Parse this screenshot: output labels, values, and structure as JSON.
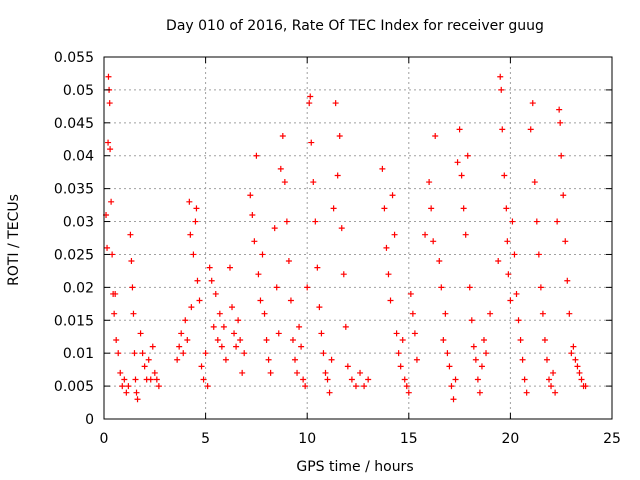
{
  "chart_data": {
    "type": "scatter",
    "title": "Day 010 of 2016, Rate Of TEC Index for receiver guug",
    "xlabel": "GPS time / hours",
    "ylabel": "ROTI / TECUs",
    "xlim": [
      0,
      25
    ],
    "ylim": [
      0,
      0.055
    ],
    "xticks": [
      0,
      5,
      10,
      15,
      20,
      25
    ],
    "xtick_labels": [
      "0",
      "5",
      "10",
      "15",
      "20",
      "25"
    ],
    "yticks": [
      0,
      0.005,
      0.01,
      0.015,
      0.02,
      0.025,
      0.03,
      0.035,
      0.04,
      0.045,
      0.05,
      0.055
    ],
    "ytick_labels": [
      "0",
      "0.005",
      "0.01",
      "0.015",
      "0.02",
      "0.025",
      "0.03",
      "0.035",
      "0.04",
      "0.045",
      "0.05",
      "0.055"
    ],
    "grid": true,
    "marker": "+",
    "series_color": "#ff0000",
    "series": [
      {
        "name": "ROTI",
        "points": [
          [
            0.1,
            0.031
          ],
          [
            0.15,
            0.026
          ],
          [
            0.2,
            0.042
          ],
          [
            0.22,
            0.052
          ],
          [
            0.25,
            0.05
          ],
          [
            0.28,
            0.048
          ],
          [
            0.3,
            0.041
          ],
          [
            0.35,
            0.033
          ],
          [
            0.4,
            0.025
          ],
          [
            0.45,
            0.019
          ],
          [
            0.5,
            0.016
          ],
          [
            0.55,
            0.019
          ],
          [
            0.6,
            0.012
          ],
          [
            0.7,
            0.01
          ],
          [
            0.8,
            0.007
          ],
          [
            0.9,
            0.005
          ],
          [
            1.0,
            0.006
          ],
          [
            1.1,
            0.004
          ],
          [
            1.2,
            0.005
          ],
          [
            1.3,
            0.028
          ],
          [
            1.35,
            0.024
          ],
          [
            1.4,
            0.02
          ],
          [
            1.45,
            0.016
          ],
          [
            1.5,
            0.01
          ],
          [
            1.55,
            0.006
          ],
          [
            1.6,
            0.004
          ],
          [
            1.65,
            0.003
          ],
          [
            1.8,
            0.013
          ],
          [
            1.9,
            0.01
          ],
          [
            2.0,
            0.008
          ],
          [
            2.1,
            0.006
          ],
          [
            2.2,
            0.009
          ],
          [
            2.3,
            0.006
          ],
          [
            2.4,
            0.011
          ],
          [
            2.5,
            0.007
          ],
          [
            2.6,
            0.006
          ],
          [
            2.7,
            0.005
          ],
          [
            3.6,
            0.009
          ],
          [
            3.7,
            0.011
          ],
          [
            3.8,
            0.013
          ],
          [
            3.9,
            0.01
          ],
          [
            4.0,
            0.015
          ],
          [
            4.1,
            0.012
          ],
          [
            4.2,
            0.033
          ],
          [
            4.25,
            0.028
          ],
          [
            4.3,
            0.017
          ],
          [
            4.4,
            0.025
          ],
          [
            4.5,
            0.03
          ],
          [
            4.55,
            0.032
          ],
          [
            4.6,
            0.021
          ],
          [
            4.7,
            0.018
          ],
          [
            4.8,
            0.008
          ],
          [
            4.9,
            0.006
          ],
          [
            5.0,
            0.01
          ],
          [
            5.1,
            0.005
          ],
          [
            5.2,
            0.023
          ],
          [
            5.3,
            0.021
          ],
          [
            5.4,
            0.014
          ],
          [
            5.5,
            0.019
          ],
          [
            5.6,
            0.012
          ],
          [
            5.7,
            0.016
          ],
          [
            5.8,
            0.011
          ],
          [
            5.9,
            0.014
          ],
          [
            6.0,
            0.009
          ],
          [
            6.2,
            0.023
          ],
          [
            6.3,
            0.017
          ],
          [
            6.4,
            0.013
          ],
          [
            6.5,
            0.011
          ],
          [
            6.6,
            0.015
          ],
          [
            6.7,
            0.012
          ],
          [
            6.8,
            0.007
          ],
          [
            6.9,
            0.01
          ],
          [
            7.2,
            0.034
          ],
          [
            7.3,
            0.031
          ],
          [
            7.4,
            0.027
          ],
          [
            7.5,
            0.04
          ],
          [
            7.6,
            0.022
          ],
          [
            7.7,
            0.018
          ],
          [
            7.8,
            0.025
          ],
          [
            7.9,
            0.016
          ],
          [
            8.0,
            0.012
          ],
          [
            8.1,
            0.009
          ],
          [
            8.2,
            0.007
          ],
          [
            8.4,
            0.029
          ],
          [
            8.5,
            0.02
          ],
          [
            8.6,
            0.013
          ],
          [
            8.7,
            0.038
          ],
          [
            8.8,
            0.043
          ],
          [
            8.9,
            0.036
          ],
          [
            9.0,
            0.03
          ],
          [
            9.1,
            0.024
          ],
          [
            9.2,
            0.018
          ],
          [
            9.3,
            0.012
          ],
          [
            9.4,
            0.009
          ],
          [
            9.5,
            0.007
          ],
          [
            9.6,
            0.014
          ],
          [
            9.7,
            0.011
          ],
          [
            9.8,
            0.006
          ],
          [
            9.9,
            0.005
          ],
          [
            10.0,
            0.02
          ],
          [
            10.1,
            0.048
          ],
          [
            10.15,
            0.049
          ],
          [
            10.2,
            0.042
          ],
          [
            10.3,
            0.036
          ],
          [
            10.4,
            0.03
          ],
          [
            10.5,
            0.023
          ],
          [
            10.6,
            0.017
          ],
          [
            10.7,
            0.013
          ],
          [
            10.8,
            0.01
          ],
          [
            10.9,
            0.007
          ],
          [
            11.0,
            0.006
          ],
          [
            11.1,
            0.004
          ],
          [
            11.2,
            0.009
          ],
          [
            11.3,
            0.032
          ],
          [
            11.4,
            0.048
          ],
          [
            11.5,
            0.037
          ],
          [
            11.6,
            0.043
          ],
          [
            11.7,
            0.029
          ],
          [
            11.8,
            0.022
          ],
          [
            11.9,
            0.014
          ],
          [
            12.0,
            0.008
          ],
          [
            12.2,
            0.006
          ],
          [
            12.4,
            0.005
          ],
          [
            12.6,
            0.007
          ],
          [
            12.8,
            0.005
          ],
          [
            13.0,
            0.006
          ],
          [
            13.7,
            0.038
          ],
          [
            13.8,
            0.032
          ],
          [
            13.9,
            0.026
          ],
          [
            14.0,
            0.022
          ],
          [
            14.1,
            0.018
          ],
          [
            14.2,
            0.034
          ],
          [
            14.3,
            0.028
          ],
          [
            14.4,
            0.013
          ],
          [
            14.5,
            0.01
          ],
          [
            14.6,
            0.008
          ],
          [
            14.7,
            0.012
          ],
          [
            14.8,
            0.006
          ],
          [
            14.9,
            0.005
          ],
          [
            15.0,
            0.004
          ],
          [
            15.1,
            0.019
          ],
          [
            15.2,
            0.016
          ],
          [
            15.3,
            0.013
          ],
          [
            15.4,
            0.009
          ],
          [
            15.8,
            0.028
          ],
          [
            16.0,
            0.036
          ],
          [
            16.1,
            0.032
          ],
          [
            16.2,
            0.027
          ],
          [
            16.3,
            0.043
          ],
          [
            16.5,
            0.024
          ],
          [
            16.6,
            0.02
          ],
          [
            16.7,
            0.012
          ],
          [
            16.8,
            0.016
          ],
          [
            16.9,
            0.01
          ],
          [
            17.0,
            0.008
          ],
          [
            17.1,
            0.005
          ],
          [
            17.2,
            0.003
          ],
          [
            17.3,
            0.006
          ],
          [
            17.4,
            0.039
          ],
          [
            17.5,
            0.044
          ],
          [
            17.6,
            0.037
          ],
          [
            17.7,
            0.032
          ],
          [
            17.8,
            0.028
          ],
          [
            17.9,
            0.04
          ],
          [
            18.0,
            0.02
          ],
          [
            18.1,
            0.015
          ],
          [
            18.2,
            0.011
          ],
          [
            18.3,
            0.009
          ],
          [
            18.4,
            0.006
          ],
          [
            18.5,
            0.004
          ],
          [
            18.6,
            0.008
          ],
          [
            18.7,
            0.012
          ],
          [
            18.8,
            0.01
          ],
          [
            19.0,
            0.016
          ],
          [
            19.4,
            0.024
          ],
          [
            19.5,
            0.052
          ],
          [
            19.55,
            0.05
          ],
          [
            19.6,
            0.044
          ],
          [
            19.7,
            0.037
          ],
          [
            19.8,
            0.032
          ],
          [
            19.85,
            0.027
          ],
          [
            19.9,
            0.022
          ],
          [
            20.0,
            0.018
          ],
          [
            20.1,
            0.03
          ],
          [
            20.2,
            0.025
          ],
          [
            20.3,
            0.019
          ],
          [
            20.4,
            0.015
          ],
          [
            20.5,
            0.012
          ],
          [
            20.6,
            0.009
          ],
          [
            20.7,
            0.006
          ],
          [
            20.8,
            0.004
          ],
          [
            21.0,
            0.044
          ],
          [
            21.1,
            0.048
          ],
          [
            21.2,
            0.036
          ],
          [
            21.3,
            0.03
          ],
          [
            21.4,
            0.025
          ],
          [
            21.5,
            0.02
          ],
          [
            21.6,
            0.016
          ],
          [
            21.7,
            0.012
          ],
          [
            21.8,
            0.009
          ],
          [
            21.9,
            0.006
          ],
          [
            22.0,
            0.005
          ],
          [
            22.1,
            0.007
          ],
          [
            22.2,
            0.004
          ],
          [
            22.3,
            0.03
          ],
          [
            22.4,
            0.047
          ],
          [
            22.45,
            0.045
          ],
          [
            22.5,
            0.04
          ],
          [
            22.6,
            0.034
          ],
          [
            22.7,
            0.027
          ],
          [
            22.8,
            0.021
          ],
          [
            22.9,
            0.016
          ],
          [
            23.0,
            0.01
          ],
          [
            23.1,
            0.011
          ],
          [
            23.2,
            0.009
          ],
          [
            23.3,
            0.008
          ],
          [
            23.4,
            0.007
          ],
          [
            23.5,
            0.006
          ],
          [
            23.6,
            0.005
          ],
          [
            23.7,
            0.005
          ]
        ]
      }
    ]
  }
}
